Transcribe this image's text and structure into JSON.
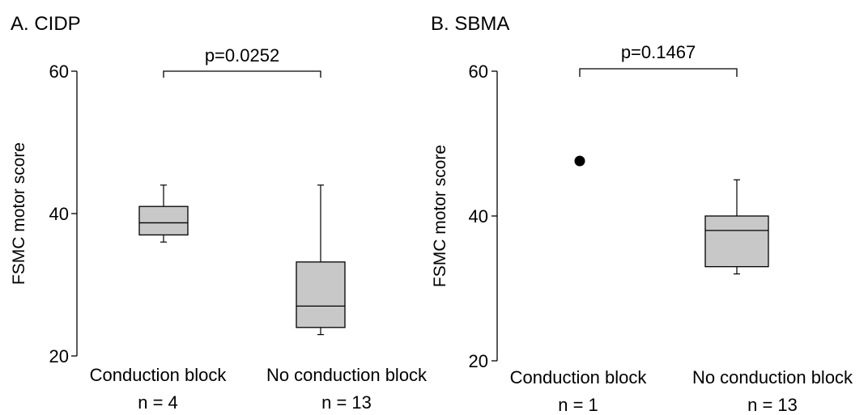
{
  "chart_data": [
    {
      "type": "box",
      "title": "A. CIDP",
      "ylabel": "FSMC motor score",
      "xlabel": "",
      "ylim": [
        20,
        60
      ],
      "yticks": [
        "20",
        "40",
        "60"
      ],
      "significance": {
        "label": "p=0.0252",
        "between": [
          0,
          1
        ]
      },
      "colors": {
        "box_fill": "#c8c8c8",
        "line": "#000000",
        "outlier": "#000000"
      },
      "categories": [
        {
          "name": "Conduction block",
          "n_label": "n = 4",
          "box": {
            "whisker_low": 36,
            "q1": 37,
            "median": 38.7,
            "q3": 41,
            "whisker_high": 44
          },
          "points": []
        },
        {
          "name": "No conduction block",
          "n_label": "n = 13",
          "box": {
            "whisker_low": 23,
            "q1": 24,
            "median": 27,
            "q3": 33.2,
            "whisker_high": 44
          },
          "points": []
        }
      ]
    },
    {
      "type": "box",
      "title": "B. SBMA",
      "ylabel": "FSMC motor score",
      "xlabel": "",
      "ylim": [
        20,
        60
      ],
      "yticks": [
        "20",
        "40",
        "60"
      ],
      "significance": {
        "label": "p=0.1467",
        "between": [
          0,
          1
        ]
      },
      "colors": {
        "box_fill": "#c8c8c8",
        "line": "#000000",
        "outlier": "#000000"
      },
      "categories": [
        {
          "name": "Conduction block",
          "n_label": "n = 1",
          "box": null,
          "points": [
            47.6
          ]
        },
        {
          "name": "No conduction block",
          "n_label": "n = 13",
          "box": {
            "whisker_low": 32,
            "q1": 33,
            "median": 38,
            "q3": 40,
            "whisker_high": 45
          },
          "points": []
        }
      ]
    }
  ]
}
